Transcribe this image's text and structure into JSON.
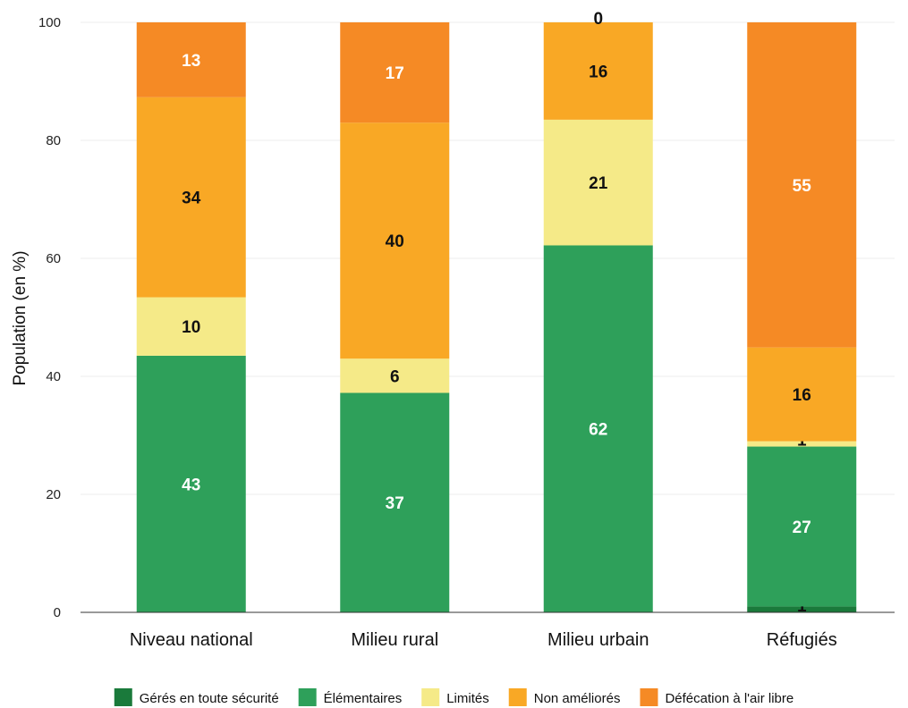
{
  "chart_data": {
    "type": "bar",
    "stacked": true,
    "categories": [
      "Niveau national",
      "Milieu rural",
      "Milieu urbain",
      "Réfugiés"
    ],
    "ylabel": "Population (en %)",
    "xlabel": "",
    "ylim": [
      0,
      100
    ],
    "yticks": [
      0,
      20,
      40,
      60,
      80,
      100
    ],
    "grid": true,
    "legend_position": "bottom",
    "series": [
      {
        "name": "Gérés en toute sécurité",
        "color": "#1a7a3b",
        "values": [
          0,
          0,
          0,
          1
        ],
        "labels": [
          "",
          "",
          "",
          "1"
        ]
      },
      {
        "name": "Élémentaires",
        "color": "#2ea05a",
        "values": [
          43.5,
          37.2,
          62.2,
          27.1
        ],
        "labels": [
          "43",
          "37",
          "62",
          "27"
        ]
      },
      {
        "name": "Limités",
        "color": "#f5ea88",
        "values": [
          9.9,
          5.8,
          21.3,
          0.9
        ],
        "labels": [
          "10",
          "6",
          "21",
          "1"
        ]
      },
      {
        "name": "Non améliorés",
        "color": "#f9a825",
        "values": [
          33.9,
          40.0,
          16.5,
          15.9
        ],
        "labels": [
          "34",
          "40",
          "16",
          "16"
        ]
      },
      {
        "name": "Défécation à l'air libre",
        "color": "#f58a25",
        "values": [
          12.7,
          17.0,
          0,
          55.1
        ],
        "labels": [
          "13",
          "17",
          "0",
          "55"
        ]
      }
    ]
  }
}
